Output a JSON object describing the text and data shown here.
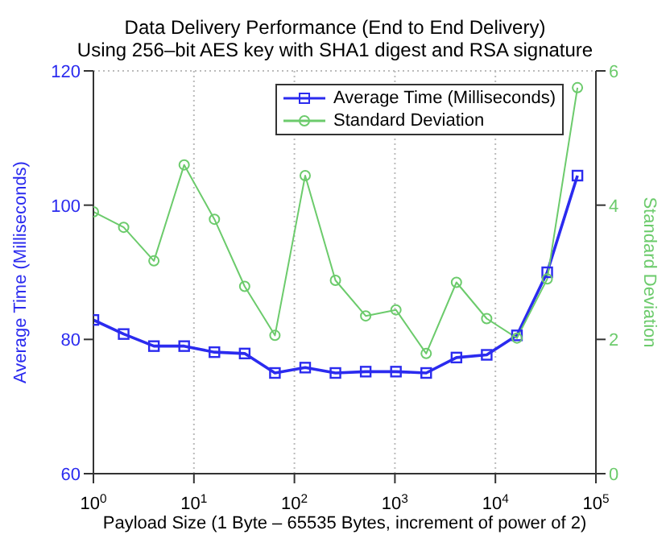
{
  "chart_data": {
    "type": "line",
    "title": "Data Delivery Performance (End to End Delivery)",
    "subtitle": "Using 256–bit AES key with SHA1 digest and RSA signature",
    "xlabel": "Payload Size (1 Byte – 65535 Bytes, increment of power of 2)",
    "ylabel": "Average Time (Milliseconds)",
    "y2label": "Standard Deviation",
    "x": [
      1,
      2,
      4,
      8,
      16,
      32,
      64,
      128,
      256,
      512,
      1024,
      2048,
      4096,
      8192,
      16384,
      32768,
      65536
    ],
    "series": [
      {
        "name": "Average Time (Milliseconds)",
        "color": "#2b2bef",
        "marker": "square",
        "values": [
          82.9,
          80.8,
          79,
          79,
          78.1,
          77.9,
          75,
          75.8,
          75,
          75.2,
          75.2,
          75,
          77.3,
          77.7,
          80.6,
          90,
          104.4
        ]
      },
      {
        "name": "Standard Deviation",
        "color": "#6ccb6c",
        "marker": "circle",
        "axis": "y2",
        "values": [
          3.9,
          3.67,
          3.17,
          4.6,
          3.79,
          2.79,
          2.06,
          4.44,
          2.88,
          2.35,
          2.44,
          1.79,
          2.85,
          2.31,
          2.02,
          2.9,
          5.75
        ]
      }
    ],
    "log": "x",
    "xlim": [
      1,
      100000
    ],
    "xticks": [
      {
        "value": 1,
        "label": "10$^{0}$"
      },
      {
        "value": 10,
        "label": "10$^{1}$"
      },
      {
        "value": 100,
        "label": "10$^{2}$"
      },
      {
        "value": 1000,
        "label": "10$^{3}$"
      },
      {
        "value": 10000,
        "label": "10$^{4}$"
      },
      {
        "value": 100000,
        "label": "10$^{5}$"
      }
    ],
    "ylim": [
      60,
      120
    ],
    "yticks": [
      60,
      80,
      100,
      120
    ],
    "y2lim": [
      0,
      6
    ],
    "y2ticks": [
      0,
      2,
      4,
      6
    ],
    "grid": true,
    "legend": "top right",
    "line_style": "solid"
  }
}
